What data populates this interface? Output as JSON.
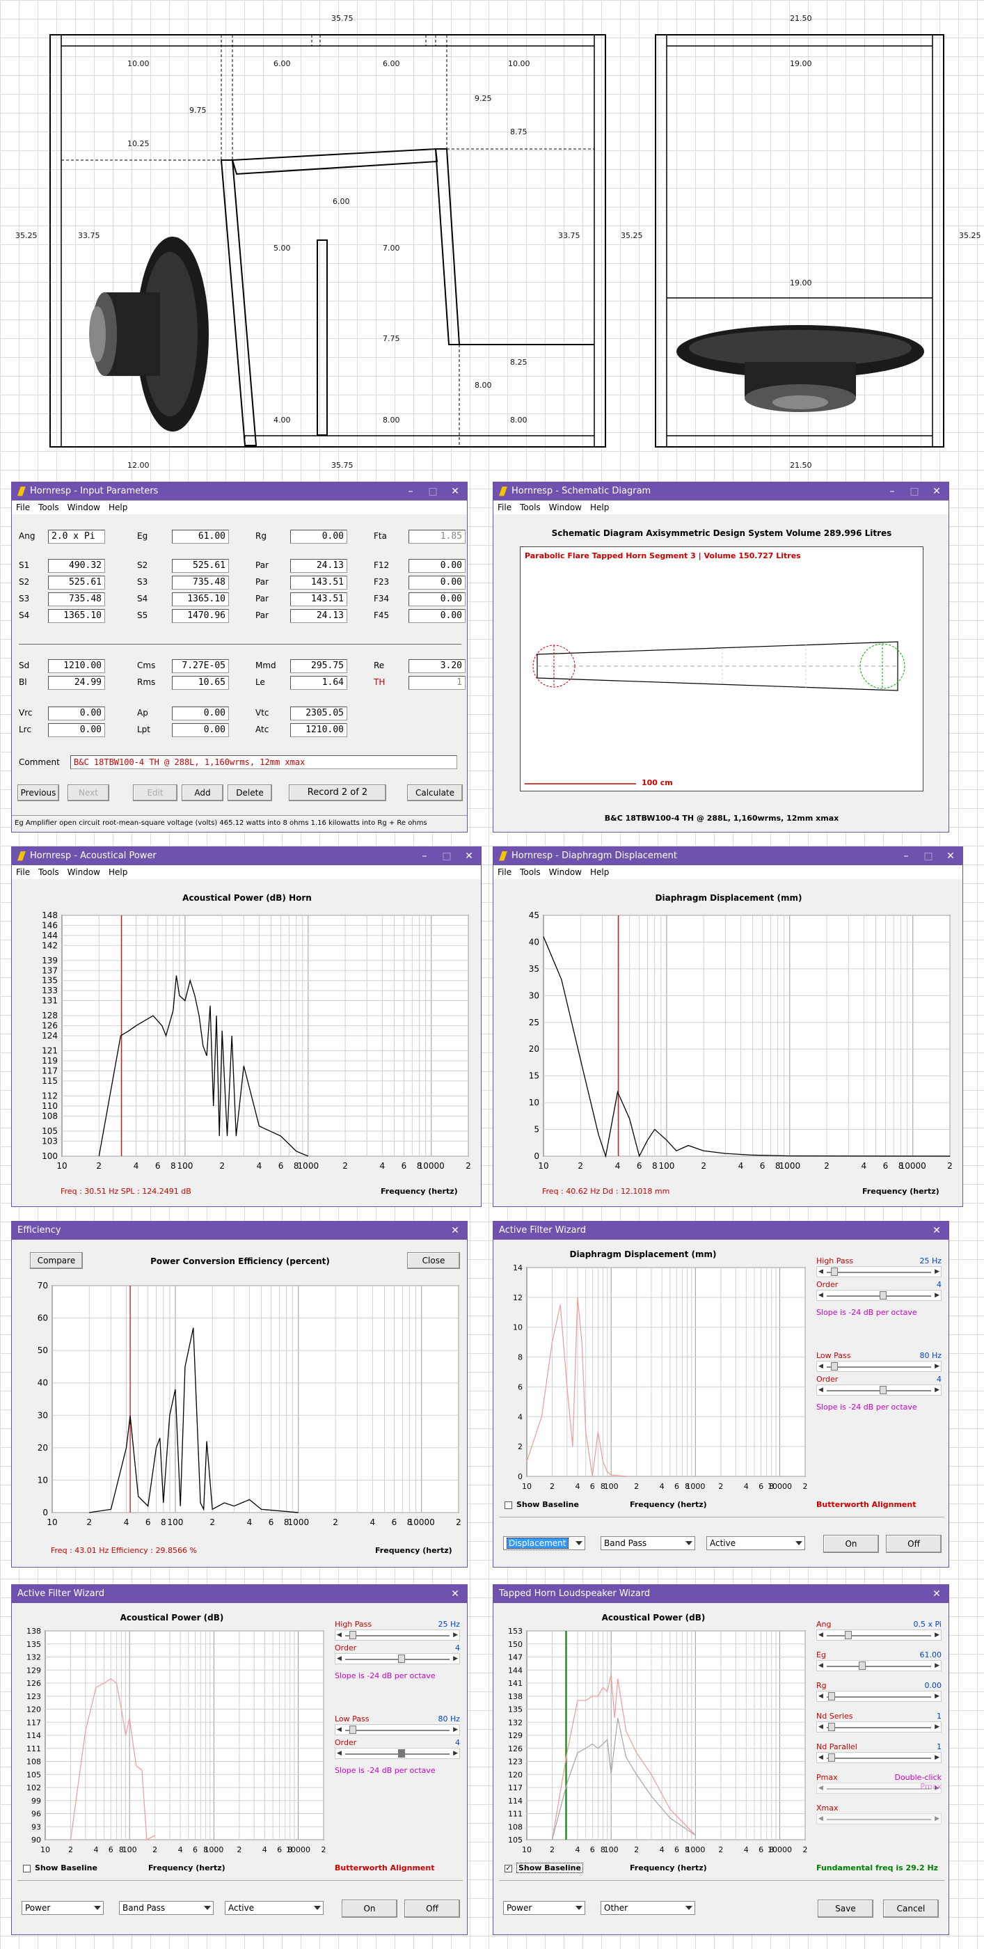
{
  "drawing": {
    "top_width": "35.75",
    "right_width": "21.50",
    "left_height": "35.25",
    "right_height": "35.25",
    "right_height2": "35.25",
    "bottom_a": "12.00",
    "bottom_b": "35.75",
    "bottom_c": "21.50",
    "dims": {
      "d1": "10.00",
      "d2": "6.00",
      "d3": "6.00",
      "d4": "10.00",
      "d5": "9.75",
      "d6": "9.25",
      "d7": "8.75",
      "d8": "10.25",
      "d9": "6.00",
      "d10": "33.75",
      "d11": "33.75",
      "d12": "5.00",
      "d13": "7.00",
      "d14": "7.75",
      "d15": "8.25",
      "d16": "8.00",
      "d17": "4.00",
      "d18": "8.00",
      "d19": "8.00",
      "d20": "19.00",
      "d21": "19.00"
    }
  },
  "input_params": {
    "title": "Hornresp - Input Parameters",
    "menu": [
      "File",
      "Tools",
      "Window",
      "Help"
    ],
    "rows": [
      [
        [
          "Ang",
          "2.0 x Pi"
        ],
        [
          "Eg",
          "61.00"
        ],
        [
          "Rg",
          "0.00"
        ],
        [
          "Fta",
          "1.85"
        ]
      ],
      [
        [
          "S1",
          "490.32"
        ],
        [
          "S2",
          "525.61"
        ],
        [
          "Par",
          "24.13"
        ],
        [
          "F12",
          "0.00"
        ]
      ],
      [
        [
          "S2",
          "525.61"
        ],
        [
          "S3",
          "735.48"
        ],
        [
          "Par",
          "143.51"
        ],
        [
          "F23",
          "0.00"
        ]
      ],
      [
        [
          "S3",
          "735.48"
        ],
        [
          "S4",
          "1365.10"
        ],
        [
          "Par",
          "143.51"
        ],
        [
          "F34",
          "0.00"
        ]
      ],
      [
        [
          "S4",
          "1365.10"
        ],
        [
          "S5",
          "1470.96"
        ],
        [
          "Par",
          "24.13"
        ],
        [
          "F45",
          "0.00"
        ]
      ],
      [
        [
          "Sd",
          "1210.00"
        ],
        [
          "Cms",
          "7.27E-05"
        ],
        [
          "Mmd",
          "295.75"
        ],
        [
          "Re",
          "3.20"
        ]
      ],
      [
        [
          "Bl",
          "24.99"
        ],
        [
          "Rms",
          "10.65"
        ],
        [
          "Le",
          "1.64"
        ],
        [
          "TH",
          "1"
        ]
      ],
      [
        [
          "Vrc",
          "0.00"
        ],
        [
          "Ap",
          "0.00"
        ],
        [
          "Vtc",
          "2305.05"
        ]
      ],
      [
        [
          "Lrc",
          "0.00"
        ],
        [
          "Lpt",
          "0.00"
        ],
        [
          "Atc",
          "1210.00"
        ]
      ]
    ],
    "comment_label": "Comment",
    "comment": "B&C 18TBW100-4 TH @ 288L, 1,160wrms, 12mm xmax",
    "buttons": [
      "Previous",
      "Next",
      "Edit",
      "Add",
      "Delete"
    ],
    "record": "Record 2 of 2",
    "calculate": "Calculate",
    "status": "Eg   Amplifier open circuit root-mean-square voltage  (volts)   465.12 watts into 8 ohms   1.16 kilowatts into Rg + Re ohms"
  },
  "schematic": {
    "title": "Hornresp - Schematic Diagram",
    "menu": [
      "File",
      "Tools",
      "Window",
      "Help"
    ],
    "heading": "Schematic Diagram   Axisymmetric Design   System Volume 289.996 Litres",
    "caption": "Parabolic Flare Tapped Horn Segment 3 | Volume 150.727 Litres",
    "scale": "100 cm",
    "footer": "B&C 18TBW100-4 TH @ 288L, 1,160wrms, 12mm xmax"
  },
  "acoustic": {
    "title": "Hornresp - Acoustical Power",
    "menu": [
      "File",
      "Tools",
      "Window",
      "Help"
    ],
    "heading": "Acoustical Power (dB)   Horn",
    "readout": "Freq : 30.51 Hz    SPL : 124.2491 dB",
    "xlabel": "Frequency (hertz)"
  },
  "diaphragm": {
    "title": "Hornresp - Diaphragm Displacement",
    "menu": [
      "File",
      "Tools",
      "Window",
      "Help"
    ],
    "heading": "Diaphragm Displacement (mm)",
    "readout": "Freq : 40.62 Hz    Dd : 12.1018 mm",
    "xlabel": "Frequency (hertz)"
  },
  "efficiency": {
    "title": "Efficiency",
    "compare": "Compare",
    "close": "Close",
    "heading": "Power Conversion Efficiency (percent)",
    "readout": "Freq : 43.01 Hz    Efficiency : 29.8566 %",
    "xlabel": "Frequency (hertz)"
  },
  "filter1": {
    "title": "Active Filter Wizard",
    "heading": "Diaphragm Displacement (mm)",
    "hp_label": "High Pass",
    "hp_value": "25 Hz",
    "order_label": "Order",
    "order_value": "4",
    "slope": "Slope is -24 dB per octave",
    "lp_label": "Low Pass",
    "lp_value": "80 Hz",
    "order2_value": "4",
    "slope2": "Slope is -24 dB per octave",
    "baseline": "Show Baseline",
    "xlabel": "Frequency (hertz)",
    "alignment": "Butterworth Alignment",
    "sel1": "Displacement",
    "sel2": "Band Pass",
    "sel3": "Active",
    "on": "On",
    "off": "Off"
  },
  "filter2": {
    "title": "Active Filter Wizard",
    "heading": "Acoustical Power (dB)",
    "hp_label": "High Pass",
    "hp_value": "25 Hz",
    "order_label": "Order",
    "order_value": "4",
    "slope": "Slope is -24 dB per octave",
    "lp_label": "Low Pass",
    "lp_value": "80 Hz",
    "order2_value": "4",
    "slope2": "Slope is -24 dB per octave",
    "baseline": "Show Baseline",
    "xlabel": "Frequency (hertz)",
    "alignment": "Butterworth Alignment",
    "sel1": "Power",
    "sel2": "Band Pass",
    "sel3": "Active",
    "on": "On",
    "off": "Off"
  },
  "tapped": {
    "title": "Tapped Horn Loudspeaker Wizard",
    "heading": "Acoustical Power (dB)",
    "ang_label": "Ang",
    "ang_value": "0.5 x Pi",
    "eg_label": "Eg",
    "eg_value": "61.00",
    "rg_label": "Rg",
    "rg_value": "0.00",
    "ns_label": "Nd  Series",
    "ns_value": "1",
    "np_label": "Nd  Parallel",
    "np_value": "1",
    "pmax_label": "Pmax",
    "pmax_value": "Double-click Pmax",
    "xmax_label": "Xmax",
    "baseline": "Show Baseline",
    "xlabel": "Frequency (hertz)",
    "fundamental": "Fundamental freq is 29.2 Hz",
    "sel1": "Power",
    "sel2": "Other",
    "save": "Save",
    "cancel": "Cancel"
  },
  "chart_data": [
    {
      "type": "line",
      "title": "Acoustical Power (dB)   Horn",
      "xlabel": "Frequency (hertz)",
      "ylabel": "",
      "xscale": "log",
      "xlim": [
        10,
        20000
      ],
      "ylim": [
        100,
        148
      ],
      "yticks": [
        100,
        103,
        105,
        108,
        110,
        112,
        115,
        117,
        119,
        121,
        124,
        126,
        128,
        131,
        133,
        135,
        137,
        139,
        142,
        144,
        146,
        148
      ],
      "xticks": [
        "10",
        "2",
        "4",
        "6",
        "8",
        "100",
        "2",
        "4",
        "6",
        "8",
        "1000",
        "2",
        "4",
        "6",
        "8",
        "10000",
        "2"
      ],
      "marker_x": 30.51,
      "series": [
        {
          "x": [
            20,
            30,
            35,
            40,
            55,
            65,
            70,
            80,
            85,
            90,
            100,
            110,
            120,
            130,
            140,
            150,
            160,
            170,
            180,
            190,
            200,
            220,
            240,
            260,
            300,
            400,
            600,
            800,
            1000
          ],
          "y": [
            100,
            124,
            125,
            126,
            128,
            126,
            124,
            129,
            136,
            132,
            131,
            135,
            132,
            128,
            122,
            120,
            130,
            110,
            128,
            104,
            125,
            104,
            124,
            104,
            118,
            106,
            104,
            101,
            100
          ]
        }
      ]
    },
    {
      "type": "line",
      "title": "Diaphragm Displacement (mm)",
      "xlabel": "Frequency (hertz)",
      "ylabel": "",
      "xscale": "log",
      "xlim": [
        10,
        20000
      ],
      "ylim": [
        0,
        45
      ],
      "yticks": [
        0,
        5,
        10,
        15,
        20,
        25,
        30,
        35,
        40,
        45
      ],
      "marker_x": 40.62,
      "series": [
        {
          "x": [
            10,
            14,
            20,
            28,
            32,
            40,
            50,
            60,
            70,
            80,
            100,
            120,
            150,
            200,
            300,
            500,
            1000,
            20000
          ],
          "y": [
            41,
            33,
            18,
            4,
            0,
            12,
            7,
            0,
            3,
            5,
            3,
            1,
            2,
            1,
            0.5,
            0.2,
            0.05,
            0
          ]
        }
      ]
    },
    {
      "type": "line",
      "title": "Power Conversion Efficiency (percent)",
      "xlabel": "Frequency (hertz)",
      "ylabel": "",
      "xscale": "log",
      "xlim": [
        10,
        20000
      ],
      "ylim": [
        0,
        70
      ],
      "yticks": [
        0,
        10,
        20,
        30,
        40,
        50,
        60,
        70
      ],
      "marker_x": 43.01,
      "series": [
        {
          "x": [
            20,
            30,
            40,
            43,
            50,
            60,
            70,
            75,
            80,
            90,
            100,
            110,
            120,
            140,
            160,
            170,
            180,
            200,
            250,
            300,
            400,
            500,
            1000
          ],
          "y": [
            0,
            1,
            20,
            29.9,
            5,
            2,
            20,
            23,
            3,
            30,
            38,
            2,
            45,
            57,
            3,
            1,
            22,
            1,
            3,
            2,
            4,
            1,
            0
          ]
        }
      ]
    },
    {
      "type": "line",
      "title": "Diaphragm Displacement (mm)",
      "xlabel": "Frequency (hertz)",
      "ylabel": "",
      "xscale": "log",
      "xlim": [
        10,
        20000
      ],
      "ylim": [
        0,
        14
      ],
      "yticks": [
        0,
        2,
        4,
        6,
        8,
        10,
        12,
        14
      ],
      "series": [
        {
          "x": [
            10,
            15,
            20,
            25,
            30,
            35,
            40,
            45,
            50,
            60,
            70,
            80,
            90,
            100,
            150
          ],
          "y": [
            1,
            4,
            9,
            11.5,
            6,
            2,
            12,
            9,
            3,
            0,
            3,
            1,
            0.3,
            0.1,
            0
          ]
        }
      ]
    },
    {
      "type": "line",
      "title": "Acoustical Power (dB)",
      "xlabel": "Frequency (hertz)",
      "ylabel": "",
      "xscale": "log",
      "xlim": [
        10,
        20000
      ],
      "ylim": [
        90,
        138
      ],
      "yticks": [
        90,
        93,
        96,
        99,
        102,
        105,
        108,
        111,
        114,
        117,
        120,
        123,
        126,
        129,
        132,
        135,
        138
      ],
      "series": [
        {
          "x": [
            20,
            30,
            40,
            50,
            60,
            70,
            80,
            90,
            100,
            110,
            120,
            140,
            160,
            200
          ],
          "y": [
            90,
            115,
            125,
            126,
            127,
            126,
            120,
            114,
            118,
            112,
            107,
            106,
            90,
            91
          ]
        }
      ]
    },
    {
      "type": "line",
      "title": "Acoustical Power (dB)",
      "xlabel": "Frequency (hertz)",
      "ylabel": "",
      "xscale": "log",
      "xlim": [
        10,
        20000
      ],
      "ylim": [
        105,
        153
      ],
      "yticks": [
        105,
        108,
        111,
        114,
        117,
        120,
        123,
        126,
        129,
        132,
        135,
        138,
        141,
        144,
        147,
        150,
        153
      ],
      "marker_x": 29.2,
      "series": [
        {
          "name": "",
          "x": [
            20,
            30,
            40,
            50,
            60,
            70,
            80,
            90,
            100,
            110,
            120,
            150,
            200,
            300,
            500,
            1000
          ],
          "y": [
            105,
            125,
            137,
            137,
            138,
            138,
            140,
            139,
            143,
            133,
            142,
            130,
            125,
            120,
            112,
            106
          ]
        },
        {
          "name": "",
          "x": [
            20,
            30,
            40,
            50,
            60,
            70,
            80,
            90,
            100,
            120,
            150,
            200,
            300,
            500,
            1000
          ],
          "y": [
            105,
            118,
            125,
            126,
            127,
            126,
            127,
            128,
            120,
            133,
            124,
            120,
            115,
            110,
            106
          ]
        }
      ]
    }
  ]
}
